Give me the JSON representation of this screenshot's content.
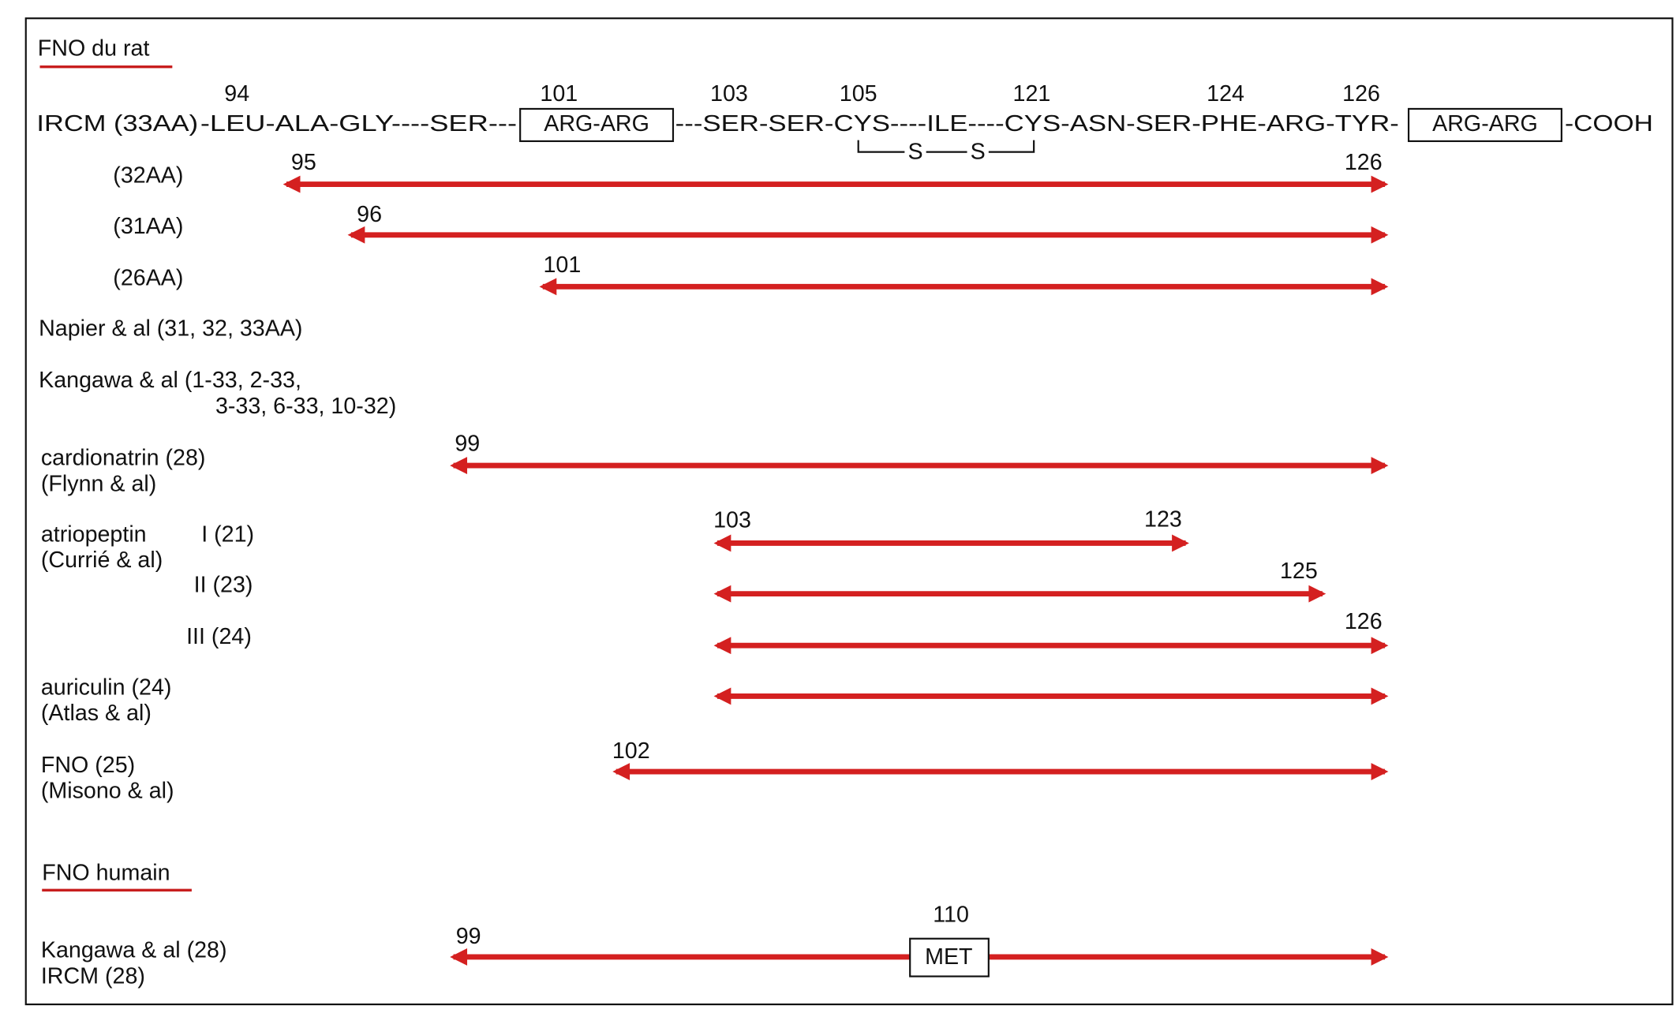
{
  "rat_section": {
    "title": "FNO du rat",
    "positions": [
      94,
      101,
      103,
      105,
      121,
      124,
      126
    ],
    "sequence": {
      "label": "IRCM (33AA)",
      "part1": "-LEU-ALA-GLY----SER---",
      "box1": "ARG-ARG",
      "part2": "---SER-SER-CYS----ILE----CYS-ASN-SER-PHE-ARG-TYR-",
      "box2": "ARG-ARG",
      "part3": "-COOH",
      "bridge": [
        "S",
        "S"
      ]
    },
    "rows": [
      {
        "label": [
          "(32AA)"
        ],
        "start": 95,
        "end": 126
      },
      {
        "label": [
          "(31AA)"
        ],
        "start": 96
      },
      {
        "label": [
          "(26AA)"
        ],
        "start": 101
      },
      {
        "label": [
          "Napier & al (31, 32, 33AA)"
        ]
      },
      {
        "label": [
          "Kangawa & al (1-33, 2-33,",
          "3-33, 6-33, 10-32)"
        ]
      },
      {
        "label": [
          "cardionatrin (28)",
          "(Flynn & al)"
        ],
        "start": 99
      },
      {
        "label": [
          "atriopeptin",
          "I (21)",
          "(Currié & al)"
        ],
        "start": 103,
        "end": 123
      },
      {
        "label": [
          "II (23)"
        ],
        "end": 125
      },
      {
        "label": [
          "III (24)"
        ],
        "end": 126
      },
      {
        "label": [
          "auriculin (24)",
          "(Atlas & al)"
        ]
      },
      {
        "label": [
          "FNO (25)",
          "(Misono & al)"
        ],
        "start": 102
      }
    ]
  },
  "human_section": {
    "title": "FNO humain",
    "label": [
      "Kangawa & al (28)",
      "IRCM (28)"
    ],
    "start": 99,
    "position": 110,
    "box": "MET"
  }
}
